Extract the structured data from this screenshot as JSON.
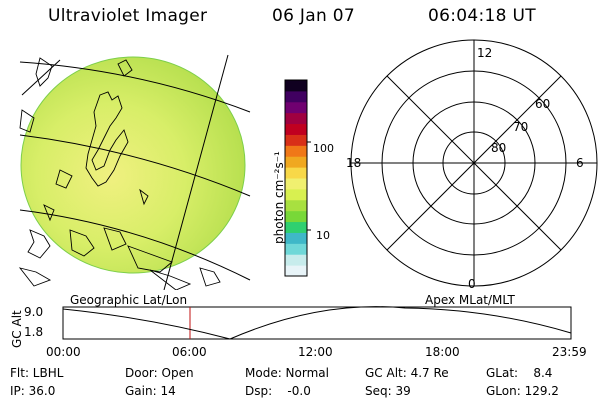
{
  "header": {
    "instrument": "Ultraviolet Imager",
    "date": "06 Jan 07",
    "time": "06:04:18 UT"
  },
  "colorbar": {
    "unit_label": "photon cm⁻²s⁻¹",
    "tick_100": "100",
    "tick_10": "10",
    "colors": [
      "#e8f4f8",
      "#c7ecec",
      "#6fd8d8",
      "#3fb8c8",
      "#2fd070",
      "#78d838",
      "#a8e040",
      "#d8f050",
      "#f0f070",
      "#f8d848",
      "#f0a820",
      "#f07818",
      "#d83018",
      "#c00020",
      "#a00040",
      "#700070",
      "#400060",
      "#100020"
    ]
  },
  "map": {
    "label": "Geographic Lat/Lon",
    "disk_color": "#d8ee6a"
  },
  "polar": {
    "label": "Apex MLat/MLT",
    "mlt_labels": {
      "top": "12",
      "left": "18",
      "right": "6",
      "bottom": "0"
    },
    "lat_labels": [
      "60",
      "70",
      "80"
    ]
  },
  "altitude_strip": {
    "axis_label": "GC Alt",
    "y_top": "9.0",
    "y_bottom": "1.8",
    "x_ticks": [
      "00:00",
      "06:00",
      "12:00",
      "18:00",
      "23:59"
    ],
    "marker_color": "#c01010"
  },
  "info": {
    "flt": "Flt: LBHL",
    "ip": "IP: 36.0",
    "door": "Door: Open",
    "gain": "Gain: 14",
    "mode": "Mode: Normal",
    "dsp": "Dsp:    -0.0",
    "gcalt": "GC Alt: 4.7 Re",
    "seq": "Seq: 39",
    "glat": "GLat:    8.4",
    "glon": "GLon: 129.2"
  }
}
